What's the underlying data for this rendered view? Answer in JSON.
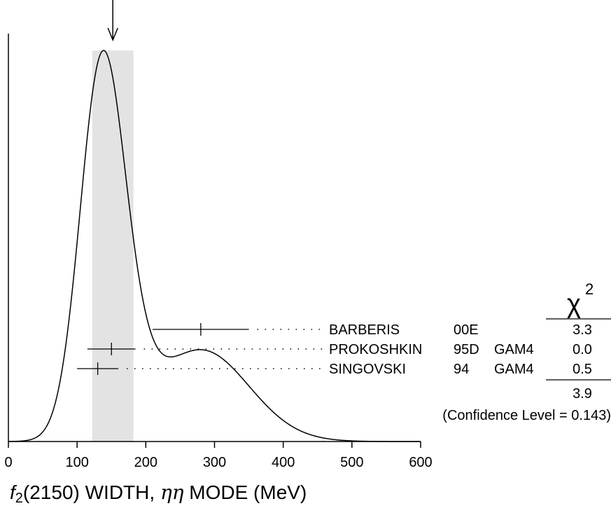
{
  "chart_data": {
    "type": "ideogram",
    "xlim": [
      0,
      600
    ],
    "x_ticks": [
      0,
      100,
      200,
      300,
      400,
      500,
      600
    ],
    "x_tick_labels": [
      "0",
      "100",
      "200",
      "300",
      "400",
      "500",
      "600"
    ],
    "xlabel": {
      "prefix": "f",
      "subscript": "2",
      "middle": "(2150) WIDTH, ",
      "eta": "ηη",
      "suffix": " MODE (MeV)"
    },
    "average": {
      "value": 152,
      "band": [
        122,
        182
      ]
    },
    "chi2_header": "χ",
    "chi2_sup": "2",
    "measurements": [
      {
        "name": "BARBERIS",
        "year": "00E",
        "tech": "",
        "value": 280,
        "error": 70,
        "chi2": "3.3"
      },
      {
        "name": "PROKOSHKIN",
        "year": "95D",
        "tech": "GAM4",
        "value": 150,
        "error": 35,
        "chi2": "0.0"
      },
      {
        "name": "SINGOVSKI",
        "year": "94",
        "tech": "GAM4",
        "value": 130,
        "error": 30,
        "chi2": "0.5"
      }
    ],
    "chi2_total": "3.9",
    "confidence": "(Confidence Level = 0.143)",
    "grid": false
  }
}
